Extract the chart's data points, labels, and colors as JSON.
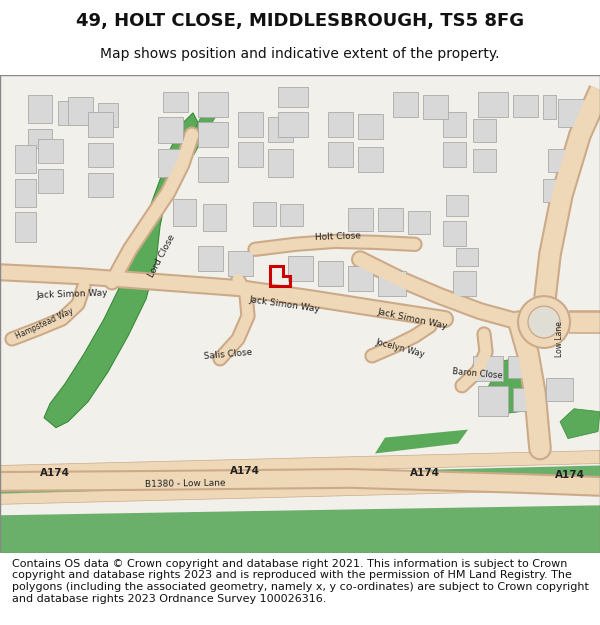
{
  "title": "49, HOLT CLOSE, MIDDLESBROUGH, TS5 8FG",
  "subtitle": "Map shows position and indicative extent of the property.",
  "footer": "Contains OS data © Crown copyright and database right 2021. This information is subject to Crown copyright and database rights 2023 and is reproduced with the permission of HM Land Registry. The polygons (including the associated geometry, namely x, y co-ordinates) are subject to Crown copyright and database rights 2023 Ordnance Survey 100026316.",
  "bg_color": "#ffffff",
  "map_bg": "#f2f0eb",
  "road_fill": "#eed8b8",
  "road_edge": "#ccaa88",
  "green_dark": "#5aaa5a",
  "green_light": "#6ab06a",
  "building_fill": "#d8d8d8",
  "building_edge": "#aaaaaa",
  "highlight_color": "#cc0000",
  "title_fontsize": 13,
  "subtitle_fontsize": 10,
  "footer_fontsize": 8
}
